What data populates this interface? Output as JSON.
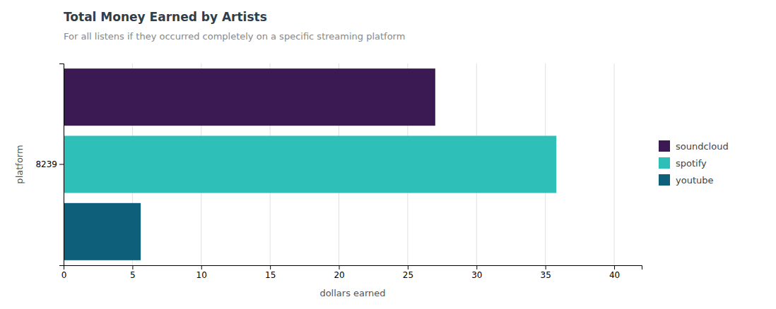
{
  "chart_data": {
    "type": "bar",
    "orientation": "horizontal",
    "title": "Total Money Earned by Artists",
    "subtitle": "For all listens if they occurred completely on a specific streaming platform",
    "xlabel": "dollars earned",
    "ylabel": "platform",
    "categories": [
      "8239"
    ],
    "series": [
      {
        "name": "soundcloud",
        "color": "#3b1a54",
        "values": [
          27.0
        ]
      },
      {
        "name": "spotify",
        "color": "#2dbfb8",
        "values": [
          35.8
        ]
      },
      {
        "name": "youtube",
        "color": "#0e5f7a",
        "values": [
          5.6
        ]
      }
    ],
    "xlim": [
      0,
      42
    ],
    "xticks": [
      0,
      5,
      10,
      15,
      20,
      25,
      30,
      35,
      40
    ],
    "grid": true,
    "legend": "right"
  }
}
